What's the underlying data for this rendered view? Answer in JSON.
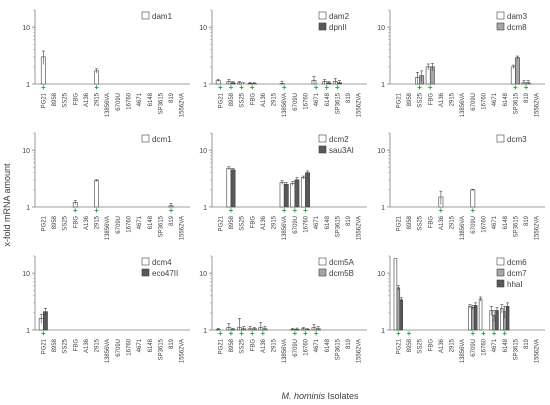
{
  "figure": {
    "ylabel": "x-fold mRNA amount",
    "xlabel": "M. hominis Isolates",
    "yticks": [
      "1",
      "10"
    ],
    "isolates": [
      "PG21",
      "8958",
      "SS25",
      "FBG",
      "A136",
      "2915",
      "13856VA",
      "6709U",
      "16760",
      "4671",
      "6148",
      "SP3615",
      "819",
      "15562VA"
    ],
    "marker_symbol": "+",
    "marker_color": "#2e9e3e",
    "series_colors": [
      "#ffffff",
      "#a6a6a6",
      "#595959"
    ]
  },
  "chart_data": [
    {
      "type": "bar",
      "scale": "log",
      "ylim": [
        1,
        20
      ],
      "grid": false,
      "legend_position": "top-right",
      "series": [
        {
          "name": "dam1",
          "values": [
            3.0,
            null,
            null,
            null,
            null,
            1.7,
            null,
            null,
            null,
            null,
            null,
            null,
            null,
            null
          ],
          "errors": [
            0.8,
            null,
            null,
            null,
            null,
            0.15,
            null,
            null,
            null,
            null,
            null,
            null,
            null,
            null
          ]
        }
      ],
      "markers": [
        0,
        5
      ]
    },
    {
      "type": "bar",
      "scale": "log",
      "ylim": [
        1,
        20
      ],
      "grid": false,
      "legend_position": "top-right",
      "series": [
        {
          "name": "dam2",
          "values": [
            1.15,
            1.1,
            1.05,
            1.03,
            null,
            null,
            1.02,
            null,
            null,
            1.15,
            1.1,
            1.1,
            null,
            null
          ],
          "errors": [
            0.05,
            0.1,
            0.05,
            0.03,
            null,
            null,
            0.1,
            null,
            null,
            0.2,
            0.1,
            0.15,
            null,
            null
          ]
        },
        {
          "name": "dpnII",
          "values": [
            null,
            1.05,
            1.0,
            1.02,
            null,
            null,
            null,
            null,
            null,
            null,
            1.05,
            1.05,
            null,
            null
          ],
          "errors": [
            null,
            0.05,
            0.05,
            0.03,
            null,
            null,
            null,
            null,
            null,
            null,
            0.05,
            0.1,
            null,
            null
          ]
        }
      ],
      "markers": [
        0,
        1,
        2,
        3,
        6,
        9,
        10,
        11
      ]
    },
    {
      "type": "bar",
      "scale": "log",
      "ylim": [
        1,
        20
      ],
      "grid": false,
      "legend_position": "top-right",
      "series": [
        {
          "name": "dam3",
          "values": [
            null,
            null,
            1.3,
            2.0,
            null,
            null,
            null,
            null,
            null,
            null,
            null,
            2.0,
            1.05,
            null
          ],
          "errors": [
            null,
            null,
            0.3,
            0.25,
            null,
            null,
            null,
            null,
            null,
            null,
            null,
            0.15,
            0.1,
            null
          ]
        },
        {
          "name": "dcm8",
          "values": [
            null,
            null,
            1.4,
            2.0,
            null,
            null,
            null,
            null,
            null,
            null,
            null,
            2.9,
            1.05,
            null
          ],
          "errors": [
            null,
            null,
            0.3,
            0.3,
            null,
            null,
            null,
            null,
            null,
            null,
            null,
            0.2,
            0.1,
            null
          ]
        }
      ],
      "markers": [
        2,
        3,
        11,
        12
      ]
    },
    {
      "type": "bar",
      "scale": "log",
      "ylim": [
        1,
        20
      ],
      "grid": false,
      "legend_position": "top-right",
      "series": [
        {
          "name": "dcm1",
          "values": [
            null,
            null,
            null,
            1.2,
            null,
            2.9,
            null,
            null,
            null,
            null,
            null,
            null,
            1.05,
            null
          ],
          "errors": [
            null,
            null,
            null,
            0.1,
            null,
            0.1,
            null,
            null,
            null,
            null,
            null,
            null,
            0.1,
            null
          ]
        }
      ],
      "markers": [
        3,
        5,
        12
      ]
    },
    {
      "type": "bar",
      "scale": "log",
      "ylim": [
        1,
        20
      ],
      "grid": false,
      "legend_position": "top-right",
      "series": [
        {
          "name": "dcm2",
          "values": [
            null,
            4.8,
            null,
            null,
            null,
            null,
            2.7,
            2.6,
            3.3,
            null,
            null,
            null,
            null,
            null
          ],
          "errors": [
            null,
            0.3,
            null,
            null,
            null,
            null,
            0.2,
            0.2,
            0.2,
            null,
            null,
            null,
            null,
            null
          ]
        },
        {
          "name": "sau3AI",
          "values": [
            null,
            4.5,
            null,
            null,
            null,
            null,
            2.5,
            3.0,
            4.0,
            null,
            null,
            null,
            null,
            null
          ],
          "errors": [
            null,
            0.3,
            null,
            null,
            null,
            null,
            0.2,
            0.3,
            0.3,
            null,
            null,
            null,
            null,
            null
          ]
        }
      ],
      "markers": [
        1,
        6,
        7,
        8
      ]
    },
    {
      "type": "bar",
      "scale": "log",
      "ylim": [
        1,
        20
      ],
      "grid": false,
      "legend_position": "top-right",
      "series": [
        {
          "name": "dcm3",
          "values": [
            null,
            null,
            null,
            null,
            1.5,
            null,
            null,
            2.0,
            null,
            null,
            null,
            null,
            null,
            null
          ],
          "errors": [
            null,
            null,
            null,
            null,
            0.4,
            null,
            null,
            0.05,
            null,
            null,
            null,
            null,
            null,
            null
          ]
        }
      ],
      "markers": [
        4,
        7
      ]
    },
    {
      "type": "bar",
      "scale": "log",
      "ylim": [
        1,
        20
      ],
      "grid": false,
      "legend_position": "top-right",
      "series": [
        {
          "name": "dcm4",
          "values": [
            1.6,
            null,
            null,
            null,
            null,
            null,
            null,
            null,
            null,
            null,
            null,
            null,
            null,
            null
          ],
          "errors": [
            0.3,
            null,
            null,
            null,
            null,
            null,
            null,
            null,
            null,
            null,
            null,
            null,
            null,
            null
          ]
        },
        {
          "name": "eco47II",
          "values": [
            2.1,
            null,
            null,
            null,
            null,
            null,
            null,
            null,
            null,
            null,
            null,
            null,
            null,
            null
          ],
          "errors": [
            0.3,
            null,
            null,
            null,
            null,
            null,
            null,
            null,
            null,
            null,
            null,
            null,
            null,
            null
          ]
        }
      ],
      "markers": [
        0
      ]
    },
    {
      "type": "bar",
      "scale": "log",
      "ylim": [
        1,
        20
      ],
      "grid": false,
      "legend_position": "top-right",
      "series": [
        {
          "name": "dcm5A",
          "values": [
            1.02,
            1.1,
            1.1,
            1.05,
            1.1,
            null,
            null,
            1.02,
            1.05,
            1.1,
            null,
            null,
            null,
            null
          ],
          "errors": [
            0.05,
            0.2,
            0.5,
            0.1,
            0.25,
            null,
            null,
            0.05,
            0.05,
            0.15,
            null,
            null,
            null,
            null
          ]
        },
        {
          "name": "dcm5B",
          "values": [
            null,
            1.02,
            1.05,
            1.05,
            1.05,
            null,
            null,
            1.03,
            1.02,
            1.05,
            null,
            null,
            null,
            null
          ],
          "errors": [
            null,
            0.05,
            0.1,
            0.05,
            0.1,
            null,
            null,
            0.05,
            0.03,
            0.1,
            null,
            null,
            null,
            null
          ]
        }
      ],
      "markers": [
        0,
        1,
        2,
        3,
        4,
        7,
        8,
        9
      ]
    },
    {
      "type": "bar",
      "scale": "log",
      "ylim": [
        1,
        20
      ],
      "grid": false,
      "legend_position": "top-right",
      "series": [
        {
          "name": "dcm6",
          "values": [
            18.0,
            null,
            null,
            null,
            null,
            null,
            null,
            2.6,
            3.5,
            2.2,
            2.4,
            null,
            null,
            null
          ],
          "errors": [
            0,
            null,
            null,
            null,
            null,
            null,
            null,
            0.2,
            0.3,
            0.4,
            0.4,
            null,
            null,
            null
          ]
        },
        {
          "name": "dcm7",
          "values": [
            5.5,
            null,
            null,
            null,
            null,
            null,
            null,
            2.5,
            null,
            1.8,
            2.1,
            null,
            null,
            null
          ],
          "errors": [
            0.5,
            null,
            null,
            null,
            null,
            null,
            null,
            0.2,
            null,
            0.4,
            0.5,
            null,
            null,
            null
          ]
        },
        {
          "name": "hhaI",
          "values": [
            3.4,
            null,
            null,
            null,
            null,
            null,
            null,
            2.7,
            null,
            2.2,
            2.6,
            null,
            null,
            null
          ],
          "errors": [
            0.3,
            null,
            null,
            null,
            null,
            null,
            null,
            0.3,
            null,
            0.3,
            0.4,
            null,
            null,
            null
          ]
        }
      ],
      "markers": [
        0,
        1,
        7,
        8,
        9,
        10
      ]
    }
  ]
}
